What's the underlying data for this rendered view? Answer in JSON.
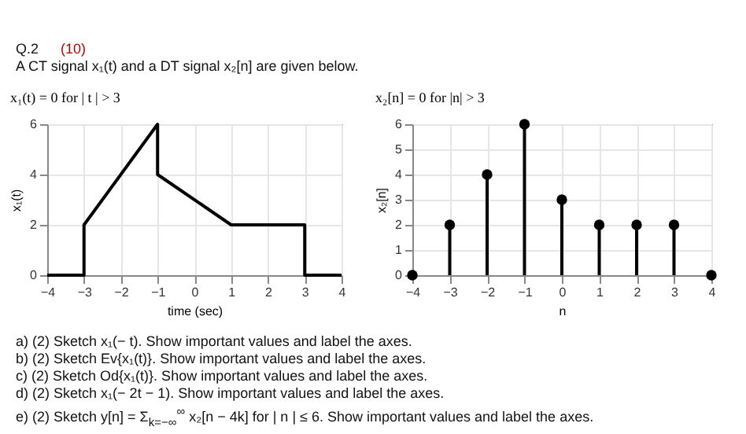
{
  "chart_data": [
    {
      "type": "line",
      "title": "x₁(t) = 0        for        | t | > 3",
      "annotations": [
        "Q.2",
        "(10)",
        "A CT signal x₁(t) and a DT signal x₂[n] are given below."
      ],
      "xlabel": "time (sec)",
      "ylabel": "x₁(t)",
      "x": [
        -4,
        -3,
        -3,
        -1,
        -1,
        1,
        3,
        3,
        4
      ],
      "series": [
        {
          "color": "#000000",
          "values": [
            0,
            0,
            2,
            6,
            4,
            2,
            2,
            0,
            0
          ]
        }
      ],
      "xlim": [
        -4,
        4
      ],
      "xticks": [
        -4,
        -3,
        -2,
        -1,
        0,
        1,
        2,
        3,
        4
      ],
      "ylim": [
        0,
        6
      ],
      "yticks": [
        0,
        2,
        4,
        6
      ],
      "grid": true,
      "line_style": "solid"
    },
    {
      "type": "lollipop",
      "title": "x₂[n] = 0        for        |n| > 3",
      "xlabel": "n",
      "ylabel": "x₂[n]",
      "annotations": [
        "a) (2) Sketch x₁(− t). Show important values and label the axes.",
        "b) (2) Sketch Ev{x₁(t)}. Show important values and label the axes.",
        "c) (2) Sketch Od{x₁(t)}. Show important values and label the axes.",
        "d) (2) Sketch x₁(− 2t − 1). Show important values and label the axes.",
        "e) (2) Sketch y[n] = Σ$_{k=−∞}$$^{∞}$ x₂[n − 4k] for | n | ≤ 6. Show important values and label the axes."
      ],
      "x": [
        -4,
        -3,
        -2,
        -1,
        0,
        1,
        2,
        3,
        4
      ],
      "series": [
        {
          "color": "#000000",
          "values": [
            0,
            2,
            4,
            6,
            3,
            2,
            2,
            2,
            0
          ]
        }
      ],
      "xlim": [
        -4,
        4
      ],
      "xticks": [
        -4,
        -3,
        -2,
        -1,
        0,
        1,
        2,
        3,
        4
      ],
      "ylim": [
        0,
        6
      ],
      "yticks": [
        0,
        1,
        2,
        3,
        4,
        5,
        6
      ],
      "grid": true,
      "marker": "circle"
    }
  ]
}
